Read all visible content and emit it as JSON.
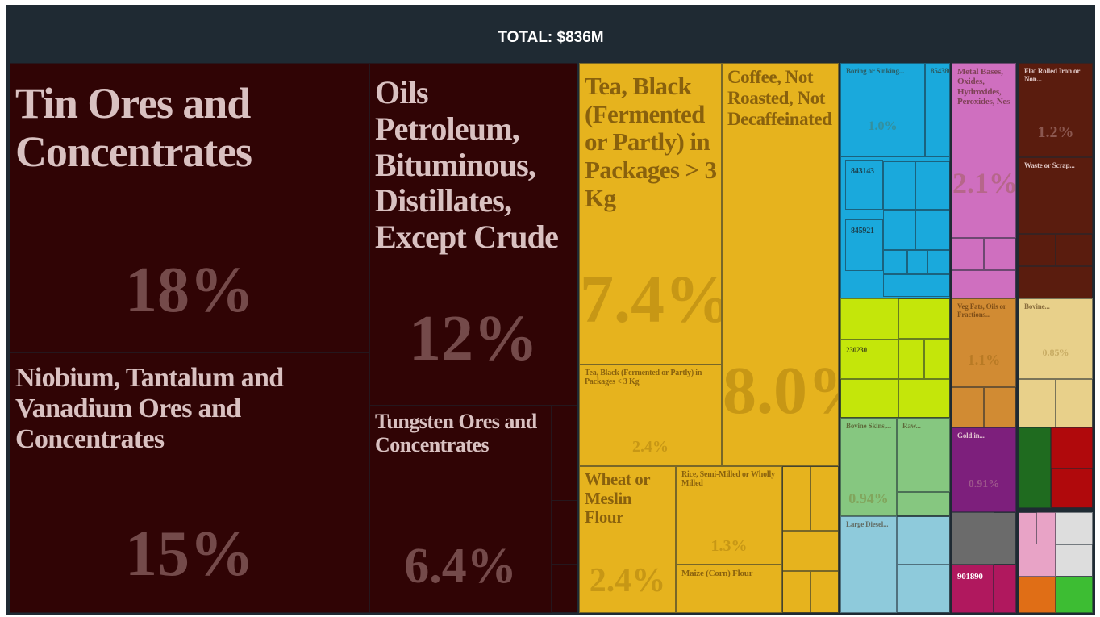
{
  "chart_data": {
    "type": "treemap",
    "title": "TOTAL: $836M",
    "categories": [
      "Tin Ores and Concentrates",
      "Niobium, Tantalum and Vanadium Ores and Concentrates",
      "Oils Petroleum, Bituminous, Distillates, Except Crude",
      "Tungsten Ores and Concentrates",
      "Tea, Black (Fermented or Partly) in Packages > 3 Kg",
      "Tea, Black (Fermented or Partly) in Packages < 3 Kg",
      "Coffee, Not Roasted, Not Decaffeinated",
      "Wheat or Meslin Flour",
      "Rice, Semi-Milled or Wholly Milled",
      "Maize (Corn) Flour",
      "Boring or Sinking...",
      "854380",
      "843143",
      "845921",
      "Metal Bases, Oxides, Hydroxides, Peroxides, Nes",
      "Flat Rolled Iron or Non...",
      "Waste or Scrap...",
      "230230",
      "Bovine Skins,...",
      "Raw...",
      "Large Diesel...",
      "Veg Fats, Oils or Fractions...",
      "Bovine...",
      "Gold in...",
      "901890"
    ],
    "values": [
      18,
      15,
      12,
      6.4,
      7.4,
      2.4,
      8.0,
      2.4,
      1.3,
      0.6,
      1.0,
      0.4,
      0.3,
      0.3,
      2.1,
      1.2,
      0.5,
      0.5,
      0.94,
      0.4,
      0.5,
      1.1,
      0.85,
      0.91,
      0.3
    ],
    "value_labels": [
      "18%",
      "15%",
      "12%",
      "6.4%",
      "7.4%",
      "2.4%",
      "8.0%",
      "2.4%",
      "1.3%",
      null,
      "1.0%",
      null,
      null,
      null,
      "2.1%",
      "1.2%",
      null,
      null,
      "0.94%",
      null,
      null,
      "1.1%",
      "0.85%",
      "0.91%",
      null
    ],
    "colors": [
      "#300405",
      "#300405",
      "#300405",
      "#300405",
      "#e6b31e",
      "#e6b31e",
      "#e6b31e",
      "#e6b31e",
      "#e6b31e",
      "#e6b31e",
      "#1aa9dc",
      "#1aa9dc",
      "#1aa9dc",
      "#1aa9dc",
      "#cf6fbf",
      "#5a1c0e",
      "#5a1c0e",
      "#c4e60a",
      "#86c780",
      "#86c780",
      "#8ecadb",
      "#d18b33",
      "#e8d08a",
      "#7d1f7c",
      "#b0185e"
    ]
  }
}
